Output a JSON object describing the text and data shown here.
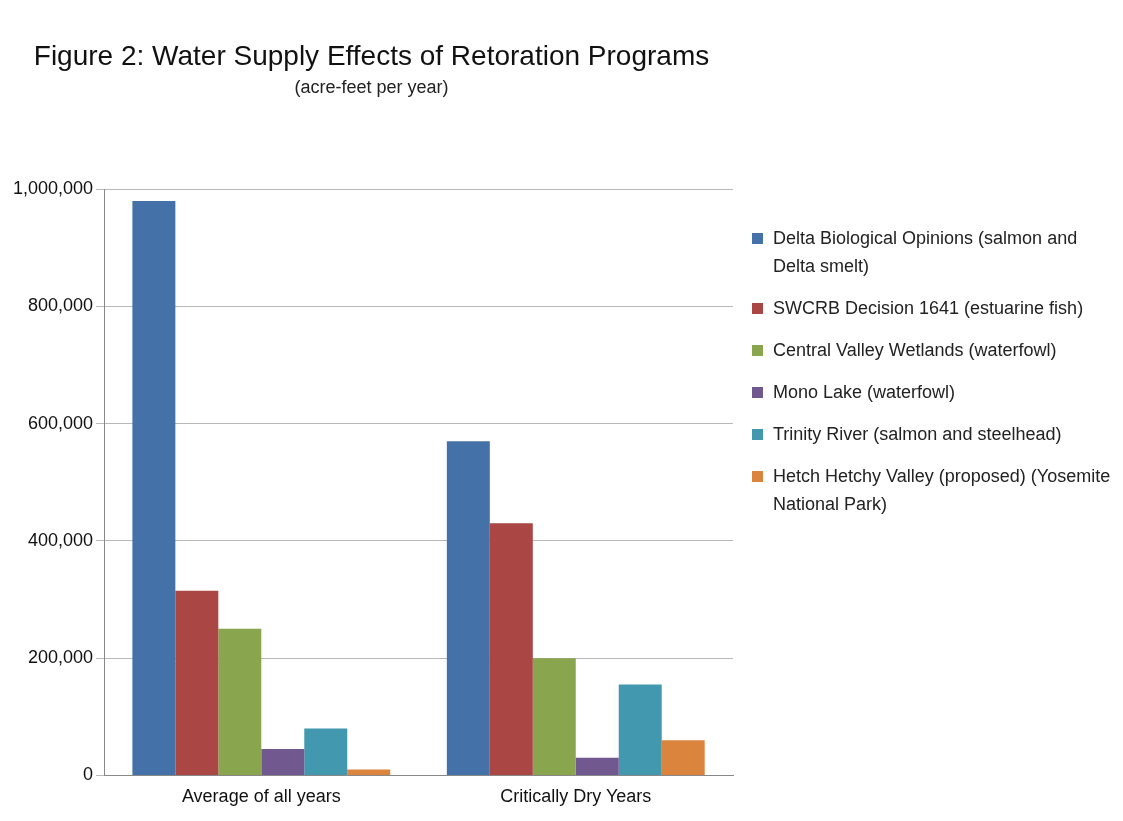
{
  "chart_data": {
    "type": "bar",
    "title": "Figure 2: Water Supply Effects of Retoration Programs",
    "subtitle": "(acre-feet per year)",
    "categories": [
      "Average of all years",
      "Critically Dry Years"
    ],
    "series": [
      {
        "name": "Delta Biological Opinions (salmon and Delta smelt)",
        "color": "#4472a8",
        "values": [
          980000,
          570000
        ]
      },
      {
        "name": "SWCRB Decision 1641 (estuarine fish)",
        "color": "#aa4644",
        "values": [
          315000,
          430000
        ]
      },
      {
        "name": "Central Valley Wetlands (waterfowl)",
        "color": "#89a54e",
        "values": [
          250000,
          200000
        ]
      },
      {
        "name": "Mono Lake (waterfowl)",
        "color": "#71588f",
        "values": [
          45000,
          30000
        ]
      },
      {
        "name": "Trinity River (salmon and steelhead)",
        "color": "#4198af",
        "values": [
          80000,
          155000
        ]
      },
      {
        "name": "Hetch Hetchy Valley (proposed) (Yosemite National Park)",
        "color": "#db843d",
        "values": [
          10000,
          60000
        ]
      }
    ],
    "ylim": [
      0,
      1000000
    ],
    "yticks": [
      {
        "value": 0,
        "label": "0"
      },
      {
        "value": 200000,
        "label": "200,000"
      },
      {
        "value": 400000,
        "label": "400,000"
      },
      {
        "value": 600000,
        "label": "600,000"
      },
      {
        "value": 800000,
        "label": "800,000"
      },
      {
        "value": 1000000,
        "label": "1,000,000"
      }
    ],
    "grid": "y",
    "legend": "right"
  }
}
